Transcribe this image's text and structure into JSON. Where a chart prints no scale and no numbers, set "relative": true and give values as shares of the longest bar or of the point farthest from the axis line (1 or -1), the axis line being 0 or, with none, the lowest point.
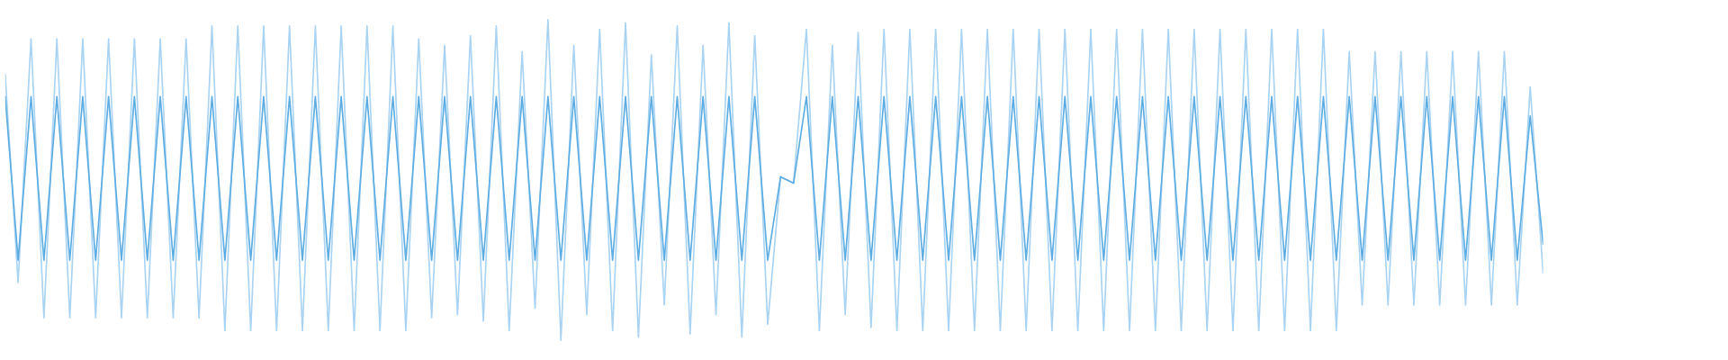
{
  "chart_data": {
    "type": "line",
    "relative": true,
    "categories": [
      null,
      null,
      null,
      null,
      null,
      null,
      null,
      null,
      null,
      null,
      null,
      null,
      null,
      null,
      null,
      null,
      null,
      null,
      null,
      null,
      null,
      null,
      null,
      null,
      null,
      null,
      null,
      null,
      null,
      null,
      null,
      null,
      null,
      null,
      null,
      null,
      null,
      null,
      null,
      null,
      null,
      null,
      null,
      null,
      null,
      null,
      null,
      null,
      null,
      null,
      null,
      null,
      null,
      null,
      null,
      null,
      null,
      null,
      null,
      null,
      null,
      null,
      null,
      null,
      null,
      null,
      null,
      null,
      null,
      null,
      null,
      null,
      null,
      null,
      null,
      null,
      null,
      null,
      null,
      null,
      null,
      null,
      null,
      null,
      null,
      null,
      null,
      null,
      null,
      null,
      null,
      null,
      null,
      null,
      null,
      null,
      null,
      null,
      null,
      null,
      null,
      null,
      null,
      null,
      null,
      null,
      null,
      null,
      null,
      null,
      null,
      null,
      null,
      null,
      null,
      null,
      null,
      null,
      null,
      null
    ],
    "series": [
      {
        "color": "#a9d3f2",
        "values": [
          0.83,
          0.18,
          0.94,
          0.07,
          0.94,
          0.07,
          0.94,
          0.07,
          0.94,
          0.07,
          0.94,
          0.07,
          0.94,
          0.07,
          0.94,
          0.07,
          0.98,
          0.03,
          0.98,
          0.03,
          0.98,
          0.03,
          0.98,
          0.03,
          0.98,
          0.03,
          0.98,
          0.03,
          0.98,
          0.03,
          0.98,
          0.03,
          0.94,
          0.07,
          0.92,
          0.08,
          0.95,
          0.06,
          0.98,
          0.03,
          0.9,
          0.1,
          1.0,
          0.0,
          0.92,
          0.08,
          0.97,
          0.03,
          0.99,
          0.01,
          0.89,
          0.11,
          0.98,
          0.02,
          0.92,
          0.08,
          0.99,
          0.01,
          0.95,
          0.05,
          0.51,
          0.49,
          0.97,
          0.03,
          0.92,
          0.08,
          0.96,
          0.04,
          0.97,
          0.03,
          0.97,
          0.03,
          0.97,
          0.03,
          0.97,
          0.03,
          0.97,
          0.03,
          0.97,
          0.03,
          0.97,
          0.03,
          0.97,
          0.03,
          0.97,
          0.03,
          0.97,
          0.03,
          0.97,
          0.03,
          0.97,
          0.03,
          0.97,
          0.03,
          0.97,
          0.03,
          0.97,
          0.03,
          0.97,
          0.03,
          0.97,
          0.03,
          0.97,
          0.03,
          0.9,
          0.11,
          0.9,
          0.11,
          0.9,
          0.11,
          0.9,
          0.11,
          0.9,
          0.11,
          0.9,
          0.11,
          0.9,
          0.11,
          0.79,
          0.21
        ]
      },
      {
        "color": "#5dade2",
        "values": [
          0.76,
          0.25,
          0.76,
          0.25,
          0.76,
          0.25,
          0.76,
          0.25,
          0.76,
          0.25,
          0.76,
          0.25,
          0.76,
          0.25,
          0.76,
          0.25,
          0.76,
          0.25,
          0.76,
          0.25,
          0.76,
          0.25,
          0.76,
          0.25,
          0.76,
          0.25,
          0.76,
          0.25,
          0.76,
          0.25,
          0.76,
          0.25,
          0.76,
          0.25,
          0.76,
          0.25,
          0.76,
          0.25,
          0.76,
          0.25,
          0.76,
          0.25,
          0.76,
          0.25,
          0.76,
          0.25,
          0.76,
          0.25,
          0.76,
          0.25,
          0.76,
          0.25,
          0.76,
          0.25,
          0.76,
          0.25,
          0.76,
          0.25,
          0.76,
          0.25,
          0.51,
          0.49,
          0.76,
          0.25,
          0.76,
          0.25,
          0.76,
          0.25,
          0.76,
          0.25,
          0.76,
          0.25,
          0.76,
          0.25,
          0.76,
          0.25,
          0.76,
          0.25,
          0.76,
          0.25,
          0.76,
          0.25,
          0.76,
          0.25,
          0.76,
          0.25,
          0.76,
          0.25,
          0.76,
          0.25,
          0.76,
          0.25,
          0.76,
          0.25,
          0.76,
          0.25,
          0.76,
          0.25,
          0.76,
          0.25,
          0.76,
          0.25,
          0.76,
          0.25,
          0.76,
          0.25,
          0.76,
          0.25,
          0.76,
          0.25,
          0.76,
          0.25,
          0.76,
          0.25,
          0.76,
          0.25,
          0.76,
          0.25,
          0.7,
          0.3
        ]
      }
    ]
  }
}
